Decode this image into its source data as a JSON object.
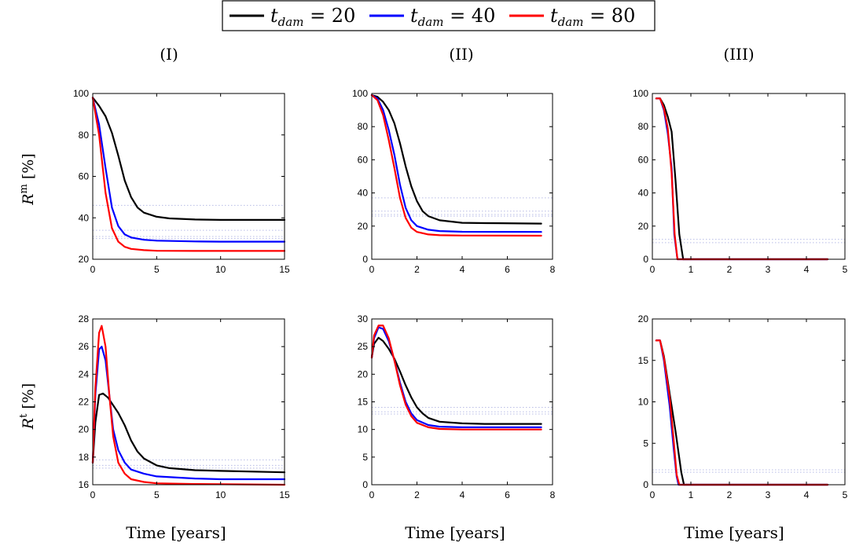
{
  "colors": {
    "black": "#000000",
    "blue": "#0000ff",
    "red": "#ff0000",
    "ref": "#b8bce6"
  },
  "legend": {
    "entries": [
      {
        "var": "t",
        "sub": "dam",
        "rest": " = 20",
        "color": "#000000"
      },
      {
        "var": "t",
        "sub": "dam",
        "rest": " = 40",
        "color": "#0000ff"
      },
      {
        "var": "t",
        "sub": "dam",
        "rest": " = 80",
        "color": "#ff0000"
      }
    ]
  },
  "columns": [
    "(I)",
    "(II)",
    "(III)"
  ],
  "row_labels": [
    {
      "main": "R",
      "sup": "m",
      "unit": " [%]"
    },
    {
      "main": "R",
      "sup": "t",
      "unit": " [%]"
    }
  ],
  "xlabel": "Time [years]",
  "chart_data": [
    {
      "type": "line",
      "id": "I-m",
      "xlim": [
        0,
        15
      ],
      "ylim": [
        20,
        100
      ],
      "xticks": [
        0,
        5,
        10,
        15
      ],
      "yticks": [
        20,
        40,
        60,
        80,
        100
      ],
      "ref_lines": [
        46,
        34,
        31,
        30
      ],
      "series": [
        {
          "name": "t_dam = 20",
          "color": "#000000",
          "points": [
            [
              0,
              98
            ],
            [
              0.5,
              94
            ],
            [
              1,
              89
            ],
            [
              1.5,
              81
            ],
            [
              2,
              70
            ],
            [
              2.5,
              58
            ],
            [
              3,
              50
            ],
            [
              3.5,
              45
            ],
            [
              4,
              42.5
            ],
            [
              5,
              40.5
            ],
            [
              6,
              39.7
            ],
            [
              8,
              39.2
            ],
            [
              10,
              39
            ],
            [
              15,
              39
            ]
          ]
        },
        {
          "name": "t_dam = 40",
          "color": "#0000ff",
          "points": [
            [
              0,
              98
            ],
            [
              0.5,
              85
            ],
            [
              1,
              64
            ],
            [
              1.5,
              45
            ],
            [
              2,
              36
            ],
            [
              2.5,
              32
            ],
            [
              3,
              30.5
            ],
            [
              4,
              29.4
            ],
            [
              5,
              29
            ],
            [
              8,
              28.6
            ],
            [
              10,
              28.5
            ],
            [
              15,
              28.5
            ]
          ]
        },
        {
          "name": "t_dam = 80",
          "color": "#ff0000",
          "points": [
            [
              0,
              98
            ],
            [
              0.5,
              80
            ],
            [
              1,
              52
            ],
            [
              1.5,
              35
            ],
            [
              2,
              28.5
            ],
            [
              2.5,
              26
            ],
            [
              3,
              25
            ],
            [
              4,
              24.4
            ],
            [
              5,
              24.1
            ],
            [
              8,
              24
            ],
            [
              15,
              24
            ]
          ]
        }
      ]
    },
    {
      "type": "line",
      "id": "II-m",
      "xlim": [
        0,
        8
      ],
      "ylim": [
        0,
        100
      ],
      "xticks": [
        0,
        2,
        4,
        6,
        8
      ],
      "yticks": [
        0,
        20,
        40,
        60,
        80,
        100
      ],
      "ref_lines": [
        37,
        29,
        27,
        26
      ],
      "series": [
        {
          "name": "t_dam = 20",
          "color": "#000000",
          "points": [
            [
              0,
              99
            ],
            [
              0.25,
              98
            ],
            [
              0.5,
              95
            ],
            [
              0.75,
              90
            ],
            [
              1,
              82
            ],
            [
              1.25,
              70
            ],
            [
              1.5,
              56
            ],
            [
              1.75,
              44
            ],
            [
              2,
              35
            ],
            [
              2.25,
              29
            ],
            [
              2.5,
              26
            ],
            [
              3,
              23.5
            ],
            [
              4,
              22
            ],
            [
              5,
              21.8
            ],
            [
              7.5,
              21.5
            ]
          ]
        },
        {
          "name": "t_dam = 40",
          "color": "#0000ff",
          "points": [
            [
              0,
              99
            ],
            [
              0.25,
              97
            ],
            [
              0.5,
              90
            ],
            [
              0.75,
              78
            ],
            [
              1,
              63
            ],
            [
              1.25,
              45
            ],
            [
              1.5,
              31
            ],
            [
              1.75,
              23.5
            ],
            [
              2,
              20
            ],
            [
              2.5,
              17.8
            ],
            [
              3,
              17
            ],
            [
              4,
              16.6
            ],
            [
              7.5,
              16.5
            ]
          ]
        },
        {
          "name": "t_dam = 80",
          "color": "#ff0000",
          "points": [
            [
              0,
              99
            ],
            [
              0.25,
              96
            ],
            [
              0.5,
              87
            ],
            [
              0.75,
              72
            ],
            [
              1,
              55
            ],
            [
              1.25,
              37
            ],
            [
              1.5,
              25
            ],
            [
              1.75,
              19
            ],
            [
              2,
              16.5
            ],
            [
              2.5,
              15
            ],
            [
              3,
              14.5
            ],
            [
              4,
              14.3
            ],
            [
              7.5,
              14.2
            ]
          ]
        }
      ]
    },
    {
      "type": "line",
      "id": "III-m",
      "xlim": [
        0,
        5
      ],
      "ylim": [
        0,
        100
      ],
      "xticks": [
        0,
        1,
        2,
        3,
        4,
        5
      ],
      "yticks": [
        0,
        20,
        40,
        60,
        80,
        100
      ],
      "ref_lines": [
        12,
        10
      ],
      "series": [
        {
          "name": "t_dam = 20",
          "color": "#000000",
          "points": [
            [
              0.1,
              97
            ],
            [
              0.2,
              97
            ],
            [
              0.3,
              93
            ],
            [
              0.4,
              86
            ],
            [
              0.5,
              77
            ],
            [
              0.6,
              48
            ],
            [
              0.7,
              15
            ],
            [
              0.8,
              0
            ],
            [
              4.55,
              0
            ]
          ]
        },
        {
          "name": "t_dam = 40",
          "color": "#0000ff",
          "points": [
            [
              0.1,
              97
            ],
            [
              0.2,
              97
            ],
            [
              0.3,
              90
            ],
            [
              0.4,
              76
            ],
            [
              0.5,
              55
            ],
            [
              0.57,
              15
            ],
            [
              0.65,
              0
            ],
            [
              4.55,
              0
            ]
          ]
        },
        {
          "name": "t_dam = 80",
          "color": "#ff0000",
          "points": [
            [
              0.1,
              97
            ],
            [
              0.2,
              97
            ],
            [
              0.3,
              91
            ],
            [
              0.4,
              79
            ],
            [
              0.5,
              52
            ],
            [
              0.58,
              15
            ],
            [
              0.65,
              0
            ],
            [
              4.55,
              0
            ]
          ]
        }
      ]
    },
    {
      "type": "line",
      "id": "I-t",
      "xlim": [
        0,
        15
      ],
      "ylim": [
        16,
        28
      ],
      "xticks": [
        0,
        5,
        10,
        15
      ],
      "yticks": [
        16,
        18,
        20,
        22,
        24,
        26,
        28
      ],
      "ref_lines": [
        17.8,
        17.4,
        17.2
      ],
      "series": [
        {
          "name": "t_dam = 20",
          "color": "#000000",
          "points": [
            [
              0,
              17.6
            ],
            [
              0.2,
              20.5
            ],
            [
              0.5,
              22.5
            ],
            [
              0.8,
              22.6
            ],
            [
              1.2,
              22.3
            ],
            [
              2,
              21.2
            ],
            [
              2.5,
              20.3
            ],
            [
              3,
              19.2
            ],
            [
              3.5,
              18.4
            ],
            [
              4,
              17.9
            ],
            [
              5,
              17.4
            ],
            [
              6,
              17.2
            ],
            [
              8,
              17.05
            ],
            [
              10,
              17
            ],
            [
              15,
              16.9
            ]
          ]
        },
        {
          "name": "t_dam = 40",
          "color": "#0000ff",
          "points": [
            [
              0,
              17.6
            ],
            [
              0.2,
              22.5
            ],
            [
              0.5,
              25.8
            ],
            [
              0.7,
              26
            ],
            [
              1,
              25
            ],
            [
              1.3,
              22.5
            ],
            [
              1.6,
              20
            ],
            [
              2,
              18.5
            ],
            [
              2.5,
              17.6
            ],
            [
              3,
              17.1
            ],
            [
              4,
              16.8
            ],
            [
              5,
              16.6
            ],
            [
              8,
              16.45
            ],
            [
              10,
              16.4
            ],
            [
              15,
              16.4
            ]
          ]
        },
        {
          "name": "t_dam = 80",
          "color": "#ff0000",
          "points": [
            [
              0,
              17.6
            ],
            [
              0.2,
              23
            ],
            [
              0.5,
              27
            ],
            [
              0.7,
              27.5
            ],
            [
              1,
              26
            ],
            [
              1.3,
              22.5
            ],
            [
              1.6,
              19.5
            ],
            [
              2,
              17.6
            ],
            [
              2.5,
              16.8
            ],
            [
              3,
              16.4
            ],
            [
              4,
              16.2
            ],
            [
              5,
              16.1
            ],
            [
              8,
              16.05
            ],
            [
              15,
              16
            ]
          ]
        }
      ]
    },
    {
      "type": "line",
      "id": "II-t",
      "xlim": [
        0,
        8
      ],
      "ylim": [
        0,
        30
      ],
      "xticks": [
        0,
        2,
        4,
        6,
        8
      ],
      "yticks": [
        0,
        5,
        10,
        15,
        20,
        25,
        30
      ],
      "ref_lines": [
        14,
        13.2,
        12.8
      ],
      "series": [
        {
          "name": "t_dam = 20",
          "color": "#000000",
          "points": [
            [
              0,
              23
            ],
            [
              0.1,
              25.5
            ],
            [
              0.3,
              26.6
            ],
            [
              0.5,
              26
            ],
            [
              0.75,
              24.6
            ],
            [
              1,
              22.8
            ],
            [
              1.25,
              20.5
            ],
            [
              1.5,
              18
            ],
            [
              1.75,
              15.8
            ],
            [
              2,
              14
            ],
            [
              2.25,
              12.9
            ],
            [
              2.5,
              12.1
            ],
            [
              3,
              11.4
            ],
            [
              4,
              11.1
            ],
            [
              5,
              11
            ],
            [
              7.5,
              11
            ]
          ]
        },
        {
          "name": "t_dam = 40",
          "color": "#0000ff",
          "points": [
            [
              0,
              23
            ],
            [
              0.1,
              26.5
            ],
            [
              0.3,
              28.5
            ],
            [
              0.5,
              28.2
            ],
            [
              0.75,
              26
            ],
            [
              1,
              22.5
            ],
            [
              1.25,
              18.5
            ],
            [
              1.5,
              15
            ],
            [
              1.75,
              12.9
            ],
            [
              2,
              11.7
            ],
            [
              2.5,
              10.8
            ],
            [
              3,
              10.5
            ],
            [
              4,
              10.4
            ],
            [
              7.5,
              10.4
            ]
          ]
        },
        {
          "name": "t_dam = 80",
          "color": "#ff0000",
          "points": [
            [
              0,
              23
            ],
            [
              0.1,
              27
            ],
            [
              0.3,
              28.8
            ],
            [
              0.5,
              28.8
            ],
            [
              0.75,
              26.5
            ],
            [
              1,
              22.5
            ],
            [
              1.25,
              18
            ],
            [
              1.5,
              14.5
            ],
            [
              1.75,
              12.4
            ],
            [
              2,
              11.2
            ],
            [
              2.5,
              10.4
            ],
            [
              3,
              10.1
            ],
            [
              4,
              10
            ],
            [
              7.5,
              10
            ]
          ]
        }
      ]
    },
    {
      "type": "line",
      "id": "III-t",
      "xlim": [
        0,
        5
      ],
      "ylim": [
        0,
        20
      ],
      "xticks": [
        0,
        1,
        2,
        3,
        4,
        5
      ],
      "yticks": [
        0,
        5,
        10,
        15,
        20
      ],
      "ref_lines": [
        1.8,
        1.5
      ],
      "series": [
        {
          "name": "t_dam = 20",
          "color": "#000000",
          "points": [
            [
              0.1,
              17.4
            ],
            [
              0.2,
              17.4
            ],
            [
              0.3,
              15.5
            ],
            [
              0.45,
              11
            ],
            [
              0.6,
              6.5
            ],
            [
              0.75,
              1.5
            ],
            [
              0.82,
              0
            ],
            [
              4.55,
              0
            ]
          ]
        },
        {
          "name": "t_dam = 40",
          "color": "#0000ff",
          "points": [
            [
              0.1,
              17.4
            ],
            [
              0.2,
              17.4
            ],
            [
              0.3,
              15
            ],
            [
              0.45,
              9.5
            ],
            [
              0.55,
              4.5
            ],
            [
              0.63,
              1
            ],
            [
              0.68,
              0
            ],
            [
              4.55,
              0
            ]
          ]
        },
        {
          "name": "t_dam = 80",
          "color": "#ff0000",
          "points": [
            [
              0.1,
              17.4
            ],
            [
              0.2,
              17.4
            ],
            [
              0.3,
              15.3
            ],
            [
              0.45,
              10.5
            ],
            [
              0.55,
              5.5
            ],
            [
              0.63,
              1.2
            ],
            [
              0.7,
              0
            ],
            [
              4.55,
              0
            ]
          ]
        }
      ]
    }
  ]
}
